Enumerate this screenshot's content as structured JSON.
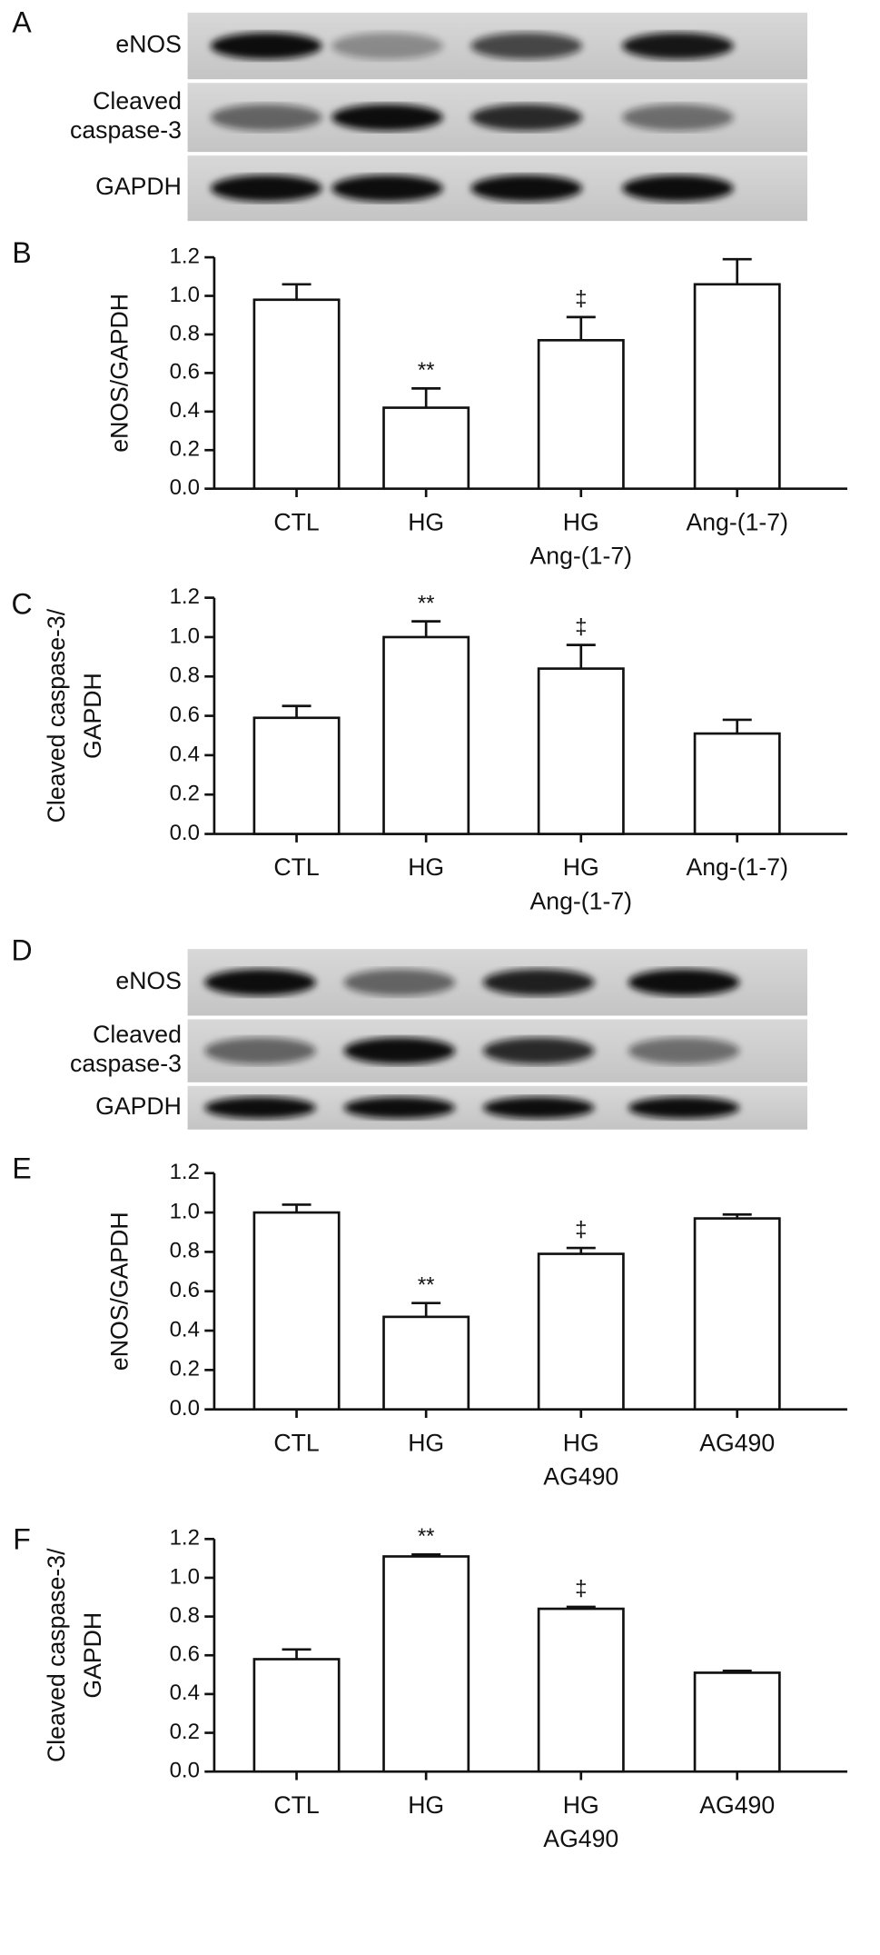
{
  "blots": [
    {
      "letter": "A",
      "rows": [
        [
          "eNOS"
        ],
        [
          "Cleaved",
          "caspase-3"
        ],
        [
          "GAPDH"
        ]
      ]
    },
    {
      "letter": "D",
      "rows": [
        [
          "eNOS"
        ],
        [
          "Cleaved",
          "caspase-3"
        ],
        [
          "GAPDH"
        ]
      ]
    }
  ],
  "chart_data": [
    {
      "type": "bar",
      "letter": "B",
      "y_label": [
        "eNOS/GAPDH"
      ],
      "categories": [
        [
          "CTL"
        ],
        [
          "HG"
        ],
        [
          "HG",
          "Ang-(1-7)"
        ],
        [
          "Ang-(1-7)"
        ]
      ],
      "values": [
        0.98,
        0.42,
        0.77,
        1.06
      ],
      "errors": [
        0.08,
        0.1,
        0.12,
        0.13
      ],
      "color": "#ffffff",
      "ylim": [
        0,
        1.2
      ],
      "yticks": [
        {
          "value": 0,
          "label": "0.0"
        },
        0.2,
        0.4,
        0.6,
        0.8,
        {
          "value": 1,
          "label": "1.0"
        },
        {
          "value": 1.2,
          "label": "1.2"
        }
      ],
      "annotations": [
        {
          "index": 1,
          "text": "**"
        },
        {
          "index": 2,
          "text": "‡"
        }
      ]
    },
    {
      "type": "bar",
      "letter": "C",
      "y_label": [
        "Cleaved caspase-3/",
        "GAPDH"
      ],
      "categories": [
        [
          "CTL"
        ],
        [
          "HG"
        ],
        [
          "HG",
          "Ang-(1-7)"
        ],
        [
          "Ang-(1-7)"
        ]
      ],
      "values": [
        0.59,
        1.0,
        0.84,
        0.51
      ],
      "errors": [
        0.06,
        0.08,
        0.12,
        0.07
      ],
      "color": "#ffffff",
      "ylim": [
        0,
        1.2
      ],
      "yticks": [
        {
          "value": 0,
          "label": "0.0"
        },
        0.2,
        0.4,
        0.6,
        0.8,
        {
          "value": 1,
          "label": "1.0"
        },
        {
          "value": 1.2,
          "label": "1.2"
        }
      ],
      "annotations": [
        {
          "index": 1,
          "text": "**"
        },
        {
          "index": 2,
          "text": "‡"
        }
      ]
    },
    {
      "type": "bar",
      "letter": "E",
      "y_label": [
        "eNOS/GAPDH"
      ],
      "categories": [
        [
          "CTL"
        ],
        [
          "HG"
        ],
        [
          "HG",
          "AG490"
        ],
        [
          "AG490"
        ]
      ],
      "values": [
        1.0,
        0.47,
        0.79,
        0.97
      ],
      "errors": [
        0.04,
        0.07,
        0.03,
        0.02
      ],
      "color": "#ffffff",
      "ylim": [
        0,
        1.2
      ],
      "yticks": [
        {
          "value": 0,
          "label": "0.0"
        },
        0.2,
        0.4,
        0.6,
        0.8,
        {
          "value": 1,
          "label": "1.0"
        },
        {
          "value": 1.2,
          "label": "1.2"
        }
      ],
      "annotations": [
        {
          "index": 1,
          "text": "**"
        },
        {
          "index": 2,
          "text": "‡"
        }
      ]
    },
    {
      "type": "bar",
      "letter": "F",
      "y_label": [
        "Cleaved caspase-3/",
        "GAPDH"
      ],
      "categories": [
        [
          "CTL"
        ],
        [
          "HG"
        ],
        [
          "HG",
          "AG490"
        ],
        [
          "AG490"
        ]
      ],
      "values": [
        0.58,
        1.11,
        0.84,
        0.51
      ],
      "errors": [
        0.05,
        0.01,
        0.01,
        0.01
      ],
      "color": "#ffffff",
      "ylim": [
        0,
        1.2
      ],
      "yticks": [
        {
          "value": 0,
          "label": "0.0"
        },
        0.2,
        0.4,
        0.6,
        0.8,
        {
          "value": 1,
          "label": "1.0"
        },
        {
          "value": 1.2,
          "label": "1.2"
        }
      ],
      "annotations": [
        {
          "index": 1,
          "text": "**"
        },
        {
          "index": 2,
          "text": "‡"
        }
      ]
    }
  ]
}
